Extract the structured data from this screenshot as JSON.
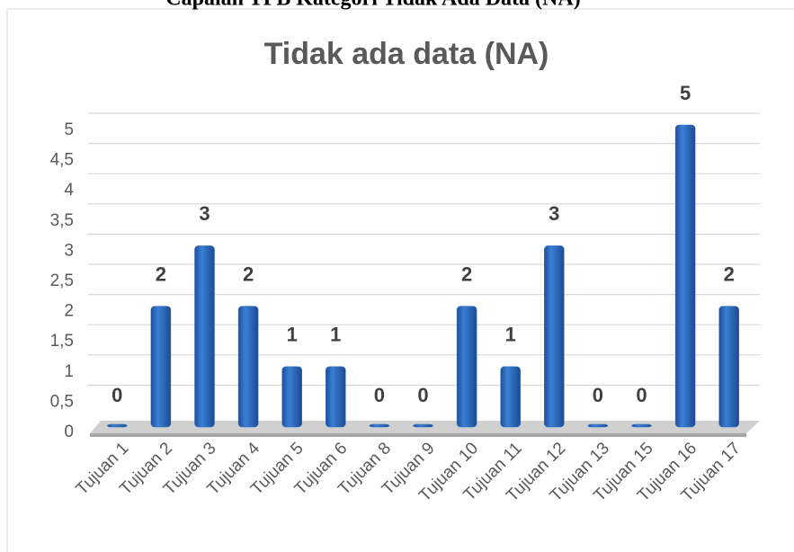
{
  "caption": "Capaian TPB Kategori Tidak Ada Data (NA)",
  "chart_data": {
    "type": "bar",
    "title": "Tidak ada data (NA)",
    "categories": [
      "Tujuan 1",
      "Tujuan 2",
      "Tujuan 3",
      "Tujuan 4",
      "Tujuan 5",
      "Tujuan 6",
      "Tujuan 8",
      "Tujuan 9",
      "Tujuan 10",
      "Tujuan 11",
      "Tujuan 12",
      "Tujuan 13",
      "Tujuan 15",
      "Tujuan 16",
      "Tujuan 17"
    ],
    "values": [
      0,
      2,
      3,
      2,
      1,
      1,
      0,
      0,
      2,
      1,
      3,
      0,
      0,
      5,
      2
    ],
    "color": "#2e6fc4",
    "ylim": [
      0,
      5
    ],
    "yticks": [
      0,
      {
        "value": 0.5,
        "label": "0,5"
      },
      1,
      {
        "value": 1.5,
        "label": "1,5"
      },
      2,
      {
        "value": 2.5,
        "label": "2,5"
      },
      3,
      {
        "value": 3.5,
        "label": "3,5"
      },
      4,
      {
        "value": 4.5,
        "label": "4,5"
      },
      5
    ],
    "grid": true
  }
}
